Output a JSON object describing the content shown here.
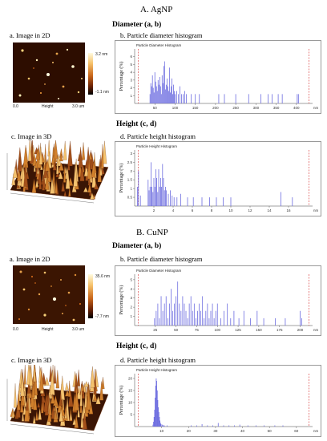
{
  "sections": [
    {
      "title": "A. AgNP",
      "diameter_header": "Diameter (a, b)",
      "height_header": "Height (c, d)",
      "cap_2d": "a. Image in 2D",
      "cap_diam_hist": "b. Particle diameter histogram",
      "cap_3d": "c. Image in 3D",
      "cap_height_hist": "d. Particle height histogram",
      "img2d": {
        "scale_max": "3.2 nm",
        "scale_min": "-1.1 nm",
        "x_left": "0.0",
        "x_mid": "Height",
        "x_right": "3.0 um"
      },
      "diam_hist": {
        "inner_title": "Particle Diameter Histogram",
        "ylabel": "Percentage (%)",
        "xunit": "nm",
        "xticks": [
          "50",
          "100",
          "150",
          "200",
          "250",
          "300",
          "350",
          "400"
        ],
        "yticks": [
          "1",
          "2",
          "3",
          "4",
          "5",
          "6"
        ],
        "xlim": [
          0,
          440
        ],
        "ylim": [
          0,
          7
        ]
      },
      "height_hist": {
        "inner_title": "Particle Height Histogram",
        "ylabel": "Percentage (%)",
        "xunit": "nm",
        "xticks": [
          "2",
          "4",
          "6",
          "8",
          "10",
          "12",
          "14",
          "16"
        ],
        "yticks": [
          "0.5",
          "1",
          "1.5",
          "2",
          "2.5",
          "3"
        ],
        "xlim": [
          0,
          18.5
        ],
        "ylim": [
          0,
          3.2
        ]
      }
    },
    {
      "title": "B. CuNP",
      "diameter_header": "Diameter (a, b)",
      "height_header": "Height (c, d)",
      "cap_2d": "a. Image in 2D",
      "cap_diam_hist": "b. Particle diameter histogram",
      "cap_3d": "c. Image in 3D",
      "cap_height_hist": "d. Particle height histogram",
      "img2d": {
        "scale_max": "35.6 nm",
        "scale_min": "-7.7 nm",
        "x_left": "0.0",
        "x_mid": "Height",
        "x_right": "3.0 um"
      },
      "diam_hist": {
        "inner_title": "Particle Diameter Histogram",
        "ylabel": "Percentage (%)",
        "xunit": "nm",
        "xticks": [
          "25",
          "50",
          "75",
          "100",
          "125",
          "150",
          "175",
          "200"
        ],
        "yticks": [
          "1",
          "2",
          "3",
          "4",
          "5"
        ],
        "xlim": [
          0,
          215
        ],
        "ylim": [
          0,
          5.6
        ]
      },
      "height_hist": {
        "inner_title": "Particle Height Histogram",
        "ylabel": "Percentage (%)",
        "xunit": "nm",
        "xticks": [
          "10",
          "20",
          "30",
          "40",
          "50",
          "60"
        ],
        "yticks": [
          "5",
          "10",
          "15",
          "20"
        ],
        "xlim": [
          0,
          66
        ],
        "ylim": [
          0,
          22
        ]
      }
    }
  ],
  "chart_data": [
    {
      "type": "bar",
      "title": "Particle Diameter Histogram",
      "ylabel": "Percentage (%)",
      "xlabel": "nm",
      "xlim": [
        0,
        440
      ],
      "ylim": [
        0,
        7
      ],
      "x": [
        38,
        40,
        42,
        44,
        46,
        48,
        50,
        52,
        54,
        56,
        58,
        60,
        62,
        64,
        66,
        68,
        70,
        72,
        74,
        76,
        78,
        80,
        82,
        84,
        86,
        88,
        90,
        92,
        94,
        96,
        98,
        100,
        104,
        108,
        112,
        116,
        120,
        124,
        128,
        140,
        150,
        160,
        208,
        222,
        250,
        282,
        312,
        330,
        340,
        355,
        365,
        402,
        405
      ],
      "values": [
        1.2,
        2.6,
        2.2,
        3.6,
        2.0,
        1.4,
        4.0,
        2.8,
        2.2,
        1.6,
        3.0,
        2.4,
        3.4,
        2.2,
        1.2,
        3.6,
        2.6,
        4.8,
        5.4,
        1.8,
        2.4,
        3.2,
        2.2,
        1.6,
        4.6,
        1.4,
        2.2,
        3.2,
        1.2,
        2.4,
        1.6,
        1.2,
        1.6,
        1.2,
        2.2,
        1.2,
        1.2,
        1.6,
        1.2,
        1.2,
        1.2,
        1.2,
        1.2,
        1.2,
        1.2,
        1.2,
        1.2,
        1.2,
        1.2,
        1.2,
        1.2,
        1.2,
        1.2
      ]
    },
    {
      "type": "bar",
      "title": "Particle Height Histogram",
      "ylabel": "Percentage (%)",
      "xlabel": "nm",
      "xlim": [
        0,
        18.5
      ],
      "ylim": [
        0,
        3.2
      ],
      "x": [
        0.3,
        0.4,
        0.6,
        1.4,
        1.5,
        1.6,
        1.7,
        1.8,
        1.9,
        2.0,
        2.1,
        2.2,
        2.3,
        2.4,
        2.5,
        2.6,
        2.7,
        2.8,
        2.9,
        3.0,
        3.1,
        3.2,
        3.3,
        3.5,
        3.7,
        3.9,
        4.1,
        4.4,
        4.8,
        5.5,
        6.1,
        7.0,
        7.8,
        8.5,
        9.2,
        10.0,
        15.2,
        16.4
      ],
      "values": [
        1.1,
        2.0,
        0.6,
        1.5,
        0.9,
        1.1,
        2.5,
        1.1,
        0.8,
        1.6,
        1.1,
        2.1,
        1.6,
        0.8,
        2.1,
        1.1,
        1.6,
        1.1,
        2.4,
        1.6,
        0.9,
        1.1,
        0.9,
        0.7,
        0.9,
        0.6,
        0.5,
        0.5,
        0.7,
        0.5,
        0.5,
        0.5,
        0.5,
        0.5,
        0.5,
        0.5,
        0.8,
        0.5
      ]
    },
    {
      "type": "bar",
      "title": "Particle Diameter Histogram",
      "ylabel": "Percentage (%)",
      "xlabel": "nm",
      "xlim": [
        0,
        215
      ],
      "ylim": [
        0,
        5.6
      ],
      "x": [
        24,
        26,
        28,
        30,
        32,
        34,
        36,
        38,
        40,
        42,
        44,
        46,
        48,
        50,
        52,
        54,
        56,
        58,
        60,
        62,
        64,
        66,
        68,
        70,
        72,
        74,
        76,
        78,
        80,
        82,
        84,
        86,
        88,
        90,
        92,
        94,
        96,
        98,
        100,
        104,
        108,
        112,
        116,
        120,
        126,
        132,
        140,
        148,
        156,
        170,
        182,
        200,
        202
      ],
      "values": [
        0.8,
        1.6,
        2.4,
        0.8,
        3.2,
        1.6,
        2.4,
        3.2,
        0.8,
        2.4,
        4.0,
        1.6,
        2.4,
        3.2,
        4.8,
        2.4,
        1.6,
        3.2,
        2.4,
        1.6,
        0.8,
        2.4,
        3.2,
        1.6,
        2.4,
        0.8,
        1.6,
        2.4,
        1.6,
        3.2,
        0.8,
        1.6,
        2.4,
        0.8,
        1.6,
        2.4,
        0.8,
        1.6,
        2.4,
        0.8,
        1.6,
        2.4,
        0.8,
        1.6,
        0.8,
        1.6,
        0.8,
        1.6,
        0.8,
        0.8,
        0.8,
        1.6,
        0.8
      ]
    },
    {
      "type": "bar",
      "title": "Particle Height Histogram",
      "ylabel": "Percentage (%)",
      "xlabel": "nm",
      "xlim": [
        0,
        66
      ],
      "ylim": [
        0,
        22
      ],
      "x": [
        6.8,
        7.0,
        7.2,
        7.4,
        7.6,
        7.8,
        8.0,
        8.2,
        8.4,
        8.6,
        8.8,
        9.0,
        9.2,
        9.4,
        9.6,
        9.8,
        10.2,
        10.6,
        11.0,
        12.0,
        21,
        23,
        25,
        27,
        29,
        31,
        33,
        35,
        37,
        39,
        42,
        45,
        48,
        52,
        55
      ],
      "values": [
        0.8,
        2.0,
        4.0,
        7.0,
        12.0,
        17.0,
        20.0,
        19.0,
        15.0,
        11.0,
        8.0,
        6.0,
        4.0,
        2.5,
        1.5,
        1.0,
        0.8,
        0.6,
        0.5,
        0.5,
        0.5,
        0.5,
        1.0,
        0.5,
        0.5,
        1.5,
        0.5,
        0.5,
        0.5,
        0.8,
        0.5,
        0.5,
        0.5,
        0.5,
        0.5
      ]
    }
  ]
}
